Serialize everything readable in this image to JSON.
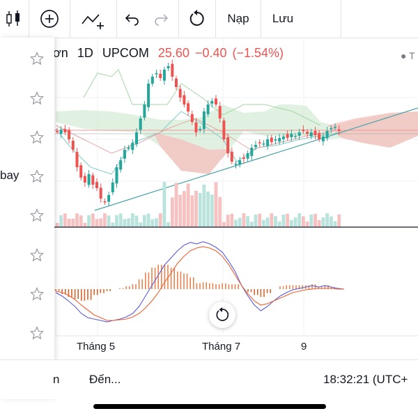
{
  "toolbar": {
    "deposit_label": "Nạp",
    "save_label": "Lưu"
  },
  "header": {
    "symbol_partial": "ơn",
    "interval": "1D",
    "exchange": "UPCOM",
    "last_price": "25.60",
    "change": "−0.40",
    "change_pct": "(−1.54%)",
    "side_indicator": "T"
  },
  "watchlist_panel": {
    "partial_label": "bay"
  },
  "time_axis": {
    "labels": [
      "Tháng 5",
      "Tháng 7",
      "9"
    ]
  },
  "bottom_bar": {
    "partial_left": "n",
    "range_label": "Đến...",
    "clock": "18:32:21 (UTC+"
  },
  "colors": {
    "up": "#26a69a",
    "down": "#ef5350",
    "cloud_bull": "#c8e6c9",
    "cloud_bear": "#f8bbbb",
    "macd": "#5b5bd6",
    "signal": "#f0602e",
    "trendline": "#4aa3a8"
  },
  "icons": [
    "bar-chart-icon",
    "plus-circle-icon",
    "indicator-icon",
    "undo-icon",
    "redo-icon",
    "reset-icon",
    "star-icon"
  ],
  "chart_data": {
    "type": "candlestick",
    "last": 25.6,
    "change": -0.4,
    "change_pct": -1.54
  }
}
